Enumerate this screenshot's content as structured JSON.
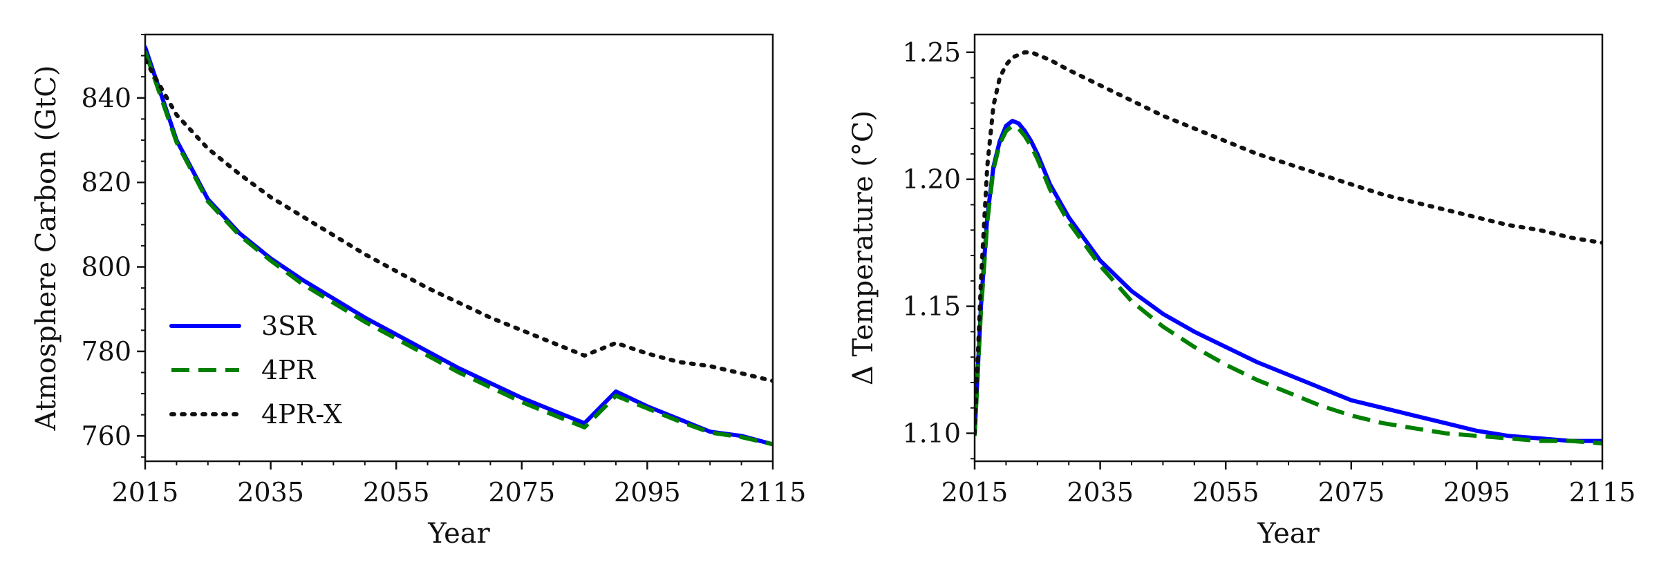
{
  "chart_data": [
    {
      "type": "line",
      "title": "",
      "xlabel": "Year",
      "ylabel": "Atmosphere Carbon (GtC)",
      "xlim": [
        2015,
        2115
      ],
      "ylim": [
        754,
        855
      ],
      "xticks": [
        2015,
        2035,
        2055,
        2075,
        2095,
        2115
      ],
      "yticks": [
        760,
        780,
        800,
        820,
        840
      ],
      "grid": false,
      "legend": {
        "position": "lower-left",
        "entries": [
          "3SR",
          "4PR",
          "4PR-X"
        ]
      },
      "x": [
        2015,
        2020,
        2025,
        2030,
        2035,
        2040,
        2045,
        2050,
        2055,
        2060,
        2065,
        2070,
        2075,
        2080,
        2085,
        2090,
        2095,
        2100,
        2105,
        2110,
        2115
      ],
      "series": [
        {
          "name": "3SR",
          "color": "#0000ff",
          "style": "solid",
          "values": [
            852,
            830,
            816,
            808,
            802,
            797,
            792.5,
            788,
            784,
            780,
            776,
            772.5,
            769,
            766,
            763,
            770.5,
            767,
            764,
            761,
            760,
            758
          ]
        },
        {
          "name": "4PR",
          "color": "#008000",
          "style": "dashed",
          "values": [
            851,
            829.5,
            815.5,
            807.5,
            801.5,
            796,
            791.5,
            787,
            783,
            779,
            775,
            771.5,
            768,
            765,
            762,
            769.5,
            766.5,
            763.5,
            760.8,
            759.7,
            758
          ]
        },
        {
          "name": "4PR-X",
          "color": "#111111",
          "style": "dotted",
          "values": [
            849,
            836,
            828,
            822,
            816.5,
            812,
            807.5,
            803,
            799,
            795,
            791.5,
            788,
            785,
            782,
            779,
            782,
            779.5,
            777.5,
            776.5,
            774.8,
            773
          ]
        }
      ]
    },
    {
      "type": "line",
      "title": "",
      "xlabel": "Year",
      "ylabel": "Δ Temperature (°C)",
      "xlim": [
        2015,
        2115
      ],
      "ylim": [
        1.089,
        1.257
      ],
      "xticks": [
        2015,
        2035,
        2055,
        2075,
        2095,
        2115
      ],
      "yticks": [
        1.1,
        1.15,
        1.2,
        1.25
      ],
      "ytick_labels": [
        "1.10",
        "1.15",
        "1.20",
        "1.25"
      ],
      "grid": false,
      "x": [
        2015,
        2016,
        2017,
        2018,
        2019,
        2020,
        2021,
        2022,
        2023,
        2024,
        2025,
        2027,
        2030,
        2035,
        2040,
        2045,
        2050,
        2055,
        2060,
        2065,
        2070,
        2075,
        2080,
        2085,
        2090,
        2095,
        2100,
        2105,
        2110,
        2115
      ],
      "series": [
        {
          "name": "3SR",
          "color": "#0000ff",
          "style": "solid",
          "values": [
            1.1,
            1.15,
            1.185,
            1.205,
            1.215,
            1.221,
            1.223,
            1.222,
            1.219,
            1.215,
            1.21,
            1.198,
            1.185,
            1.168,
            1.156,
            1.147,
            1.14,
            1.134,
            1.128,
            1.123,
            1.118,
            1.113,
            1.11,
            1.107,
            1.104,
            1.101,
            1.099,
            1.098,
            1.097,
            1.097
          ]
        },
        {
          "name": "4PR",
          "color": "#008000",
          "style": "dashed",
          "values": [
            1.099,
            1.148,
            1.183,
            1.204,
            1.214,
            1.219,
            1.221,
            1.22,
            1.217,
            1.213,
            1.208,
            1.196,
            1.183,
            1.166,
            1.152,
            1.142,
            1.134,
            1.127,
            1.121,
            1.116,
            1.111,
            1.107,
            1.104,
            1.102,
            1.1,
            1.099,
            1.098,
            1.097,
            1.097,
            1.096
          ]
        },
        {
          "name": "4PR-X",
          "color": "#111111",
          "style": "dotted",
          "values": [
            1.1,
            1.16,
            1.205,
            1.229,
            1.24,
            1.245,
            1.248,
            1.249,
            1.25,
            1.25,
            1.249,
            1.247,
            1.243,
            1.237,
            1.231,
            1.225,
            1.22,
            1.215,
            1.21,
            1.206,
            1.202,
            1.198,
            1.194,
            1.191,
            1.188,
            1.185,
            1.182,
            1.18,
            1.177,
            1.175
          ]
        }
      ]
    }
  ]
}
